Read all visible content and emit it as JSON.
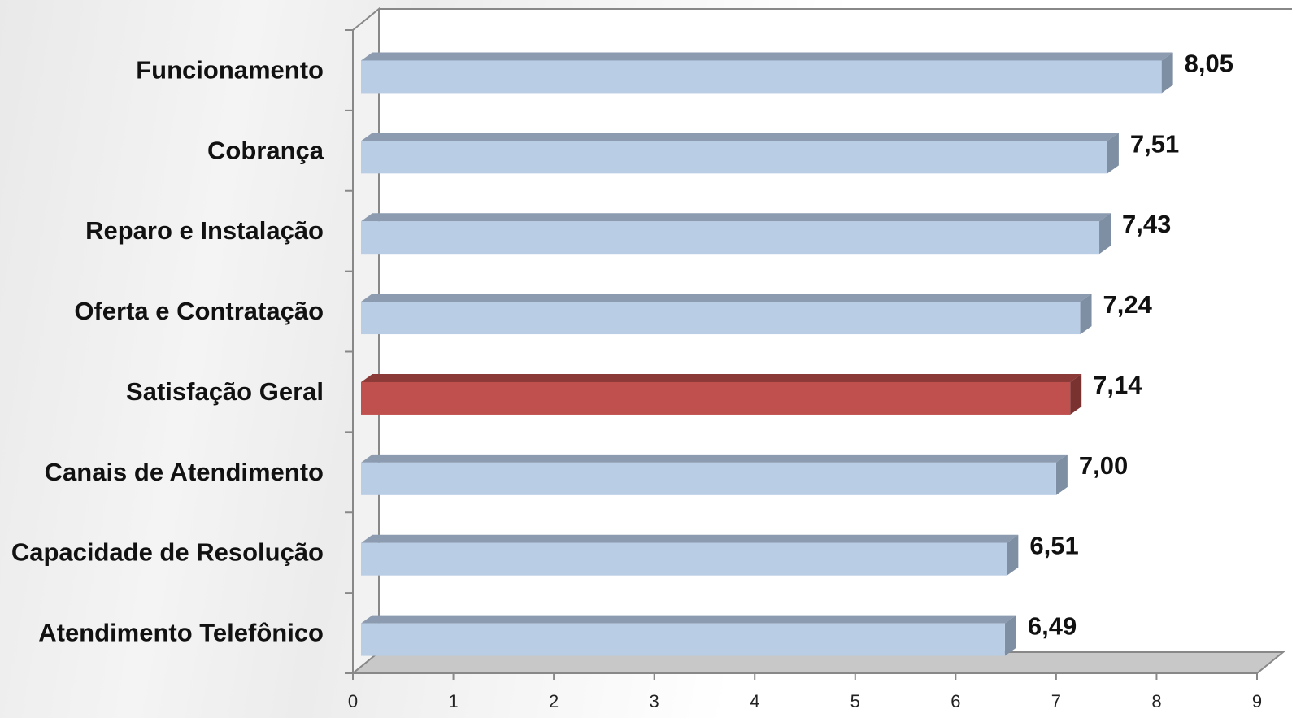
{
  "chart_data": {
    "type": "bar",
    "orientation": "horizontal",
    "categories": [
      "Funcionamento",
      "Cobrança",
      "Reparo e Instalação",
      "Oferta e Contratação",
      "Satisfação Geral",
      "Canais de Atendimento",
      "Capacidade de Resolução",
      "Atendimento Telefônico"
    ],
    "values": [
      8.05,
      7.51,
      7.43,
      7.24,
      7.14,
      7.0,
      6.51,
      6.49
    ],
    "value_labels": [
      "8,05",
      "7,51",
      "7,43",
      "7,24",
      "7,14",
      "7,00",
      "6,51",
      "6,49"
    ],
    "highlight_category": "Satisfação Geral",
    "xlim": [
      0,
      9
    ],
    "xticks": [
      0,
      1,
      2,
      3,
      4,
      5,
      6,
      7,
      8,
      9
    ],
    "title": "",
    "xlabel": "",
    "ylabel": "",
    "grid": false,
    "legend": "none",
    "colors": {
      "bar_front": "#b9cde5",
      "bar_top": "#8c9bb0",
      "bar_side": "#7f8fa3",
      "highlight_front": "#c0504d",
      "highlight_top": "#8c3a38",
      "highlight_side": "#7a3230",
      "floor": "#c8c8c8",
      "wall": "#ffffff",
      "axis": "#888888"
    }
  }
}
